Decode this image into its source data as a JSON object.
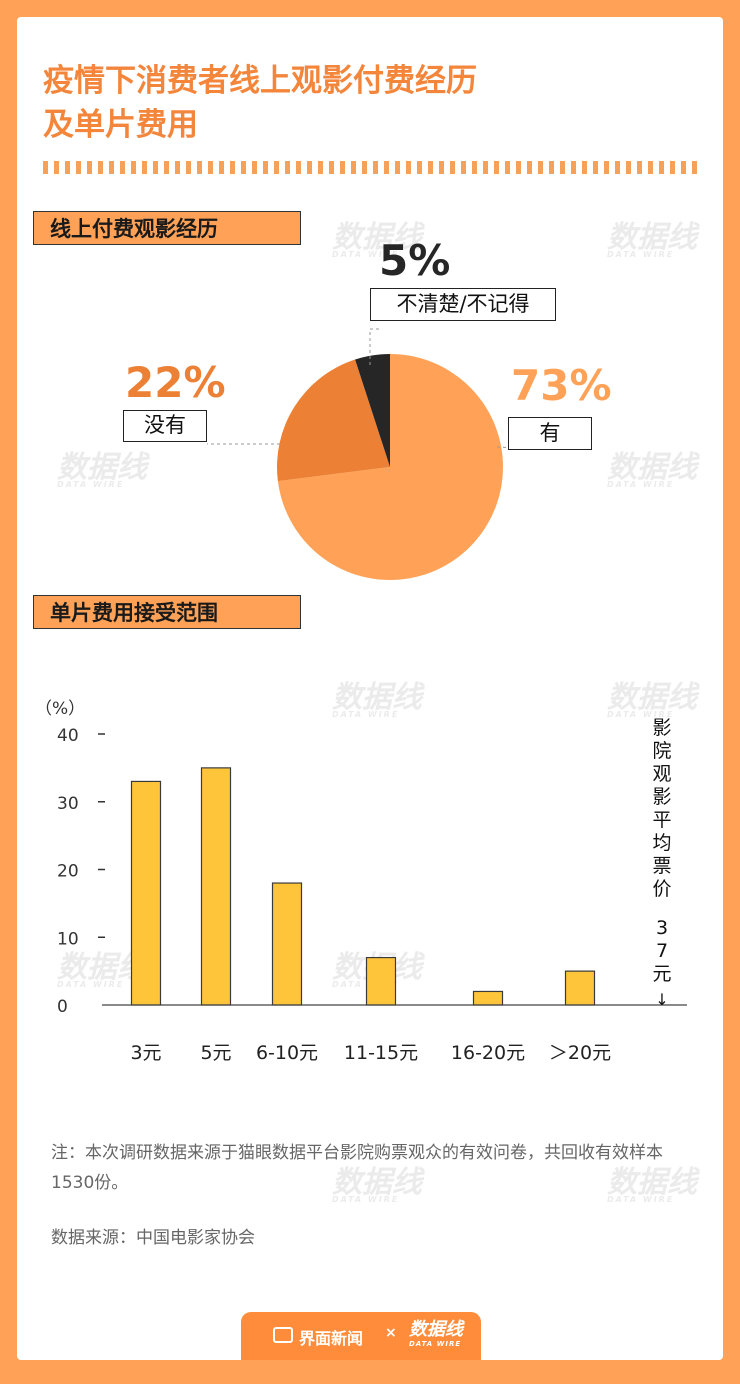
{
  "title_line1": "疫情下消费者线上观影付费经历",
  "title_line2": "及单片费用",
  "section1_title": "线上付费观影经历",
  "section2_title": "单片费用接受范围",
  "watermark_text": "数据线",
  "watermark_sub": "DATA WIRE",
  "chart_data": [
    {
      "type": "pie",
      "title": "线上付费观影经历",
      "slices": [
        {
          "label": "有",
          "value": 73,
          "display": "73%",
          "color": "#ffa257"
        },
        {
          "label": "没有",
          "value": 22,
          "display": "22%",
          "color": "#ec8135"
        },
        {
          "label": "不清楚/不记得",
          "value": 5,
          "display": "5%",
          "color": "#262626"
        }
      ]
    },
    {
      "type": "bar",
      "title": "单片费用接受范围",
      "ylabel": "（%）",
      "categories": [
        "3元",
        "5元",
        "6-10元",
        "11-15元",
        "16-20元",
        "＞20元"
      ],
      "values": [
        33,
        35,
        18,
        7,
        2,
        5
      ],
      "yticks": [
        0,
        10,
        20,
        30,
        40
      ],
      "ylim": [
        0,
        40
      ],
      "bar_color": "#ffc53a",
      "annotation_label": "影院观影平均票价",
      "annotation_value": "37元"
    }
  ],
  "note": "注：本次调研数据来源于猫眼数据平台影院购票观众的有效问卷，共回收有效样本1530份。",
  "source": "数据来源：中国电影家协会",
  "footer": {
    "brand1": "界面新闻",
    "separator": "×",
    "brand2": "数据线",
    "brand2_sub": "DATA WIRE"
  }
}
